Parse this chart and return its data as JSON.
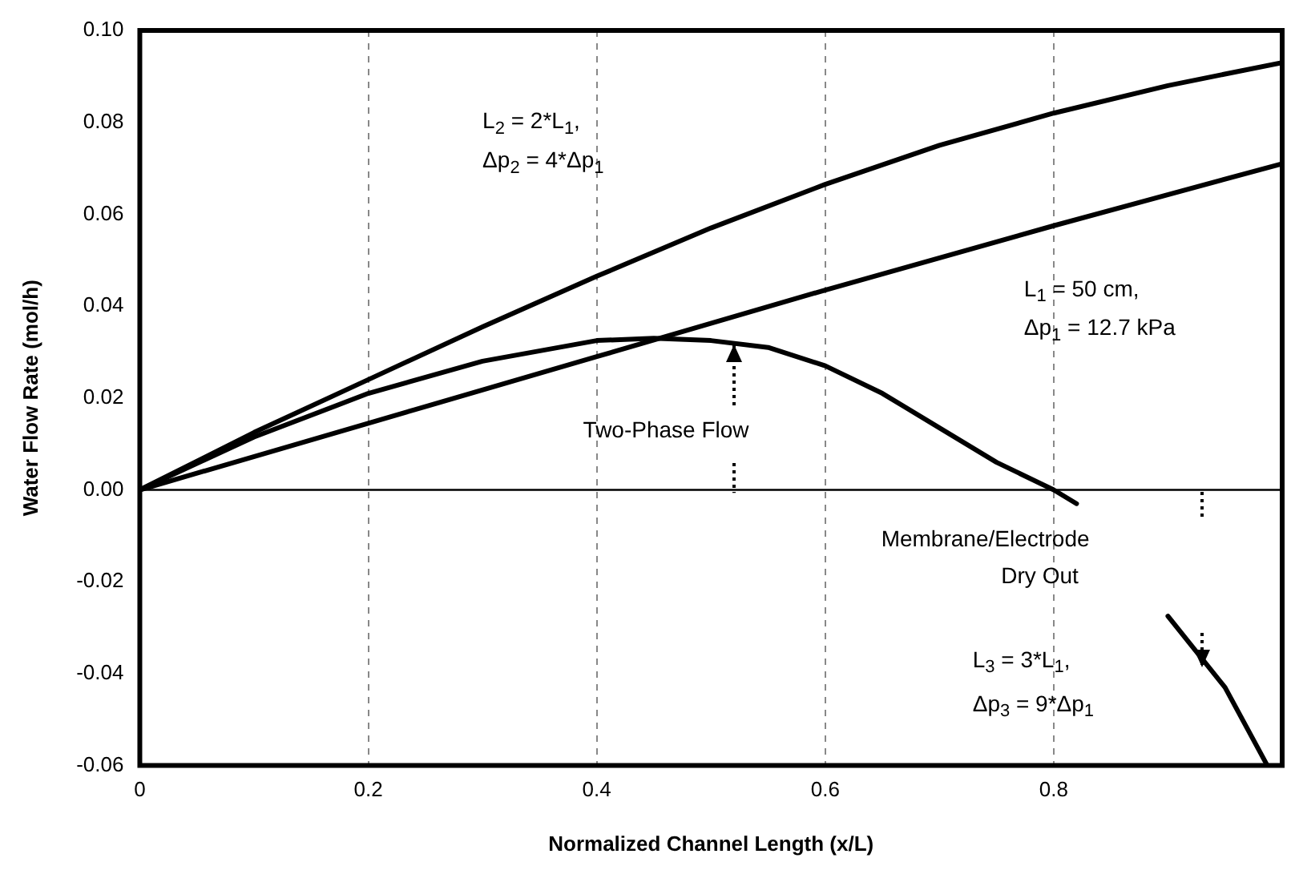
{
  "chart_data": {
    "type": "line",
    "xlabel": "Normalized Channel Length (x/L)",
    "ylabel": "Water Flow Rate (mol/h)",
    "xlim": [
      0,
      1
    ],
    "ylim": [
      -0.06,
      0.1
    ],
    "xticks": [
      0,
      0.2,
      0.4,
      0.6,
      0.8,
      {
        "value": 1,
        "label": null
      }
    ],
    "yticks": [
      {
        "value": -0.06,
        "label": "-0.06"
      },
      {
        "value": -0.04,
        "label": "-0.04"
      },
      {
        "value": -0.02,
        "label": "-0.02"
      },
      {
        "value": 0,
        "label": "0.00"
      },
      {
        "value": 0.02,
        "label": "0.02"
      },
      {
        "value": 0.04,
        "label": "0.04"
      },
      {
        "value": 0.06,
        "label": "0.06"
      },
      {
        "value": 0.08,
        "label": "0.08"
      },
      {
        "value": 0.1,
        "label": "0.10"
      }
    ],
    "grid": "x",
    "legend": false,
    "marker": "none",
    "line_style": "solid",
    "series": [
      {
        "color": "#000000",
        "x": [
          0,
          0.1,
          0.2,
          0.3,
          0.4,
          0.5,
          0.6,
          0.7,
          0.8,
          0.9,
          1
        ],
        "values": [
          0,
          0.0125,
          0.024,
          0.0355,
          0.0465,
          0.057,
          0.0665,
          0.075,
          0.082,
          0.088,
          0.093
        ]
      },
      {
        "color": "#000000",
        "x": [
          0,
          0.2,
          0.4,
          0.6,
          0.8,
          1
        ],
        "values": [
          0,
          0.0145,
          0.029,
          0.0435,
          0.0575,
          0.071
        ]
      },
      {
        "color": "#000000",
        "x": [
          0,
          0.1,
          0.2,
          0.3,
          0.4,
          0.45,
          0.5,
          0.55,
          0.6,
          0.65,
          0.7,
          0.75,
          0.8,
          0.82,
          0.86,
          0.9,
          0.95,
          0.987
        ],
        "values": [
          0,
          0.0115,
          0.021,
          0.028,
          0.0325,
          0.033,
          0.0325,
          0.031,
          0.027,
          0.021,
          0.0135,
          0.006,
          0,
          -0.003,
          null,
          -0.0275,
          -0.043,
          -0.06
        ]
      }
    ],
    "ref_lines": [
      {
        "axis": "y",
        "value": 0,
        "color": "#000000"
      }
    ],
    "annotations": [
      "L$_{2}$ = 2*L$_{1}$,",
      "Δp$_{2}$ = 4*Δp$_{1}$",
      "L$_{1}$ = 50 cm,",
      "Δp$_{1}$ = 12.7 kPa",
      "Two-Phase Flow",
      "Membrane/Electrode",
      "Dry Out",
      "L$_{3}$ = 3*L$_{1}$,",
      "Δp$_{3}$ = 9*Δp$_{1}$"
    ]
  }
}
